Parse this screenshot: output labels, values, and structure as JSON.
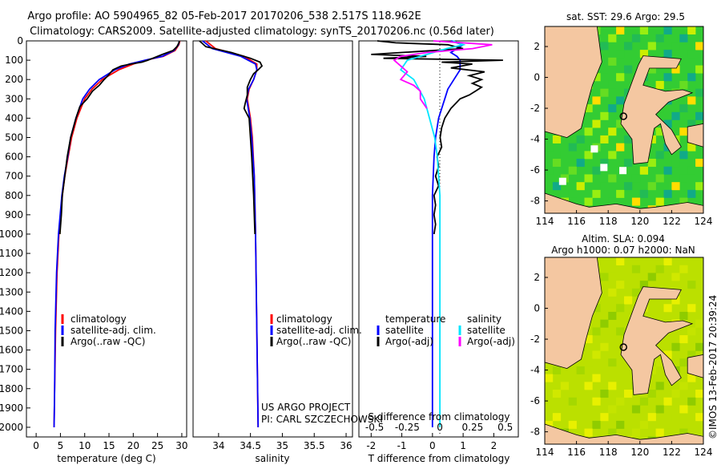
{
  "header": {
    "title_line1": "Argo profile: AO 5904965_82 05-Feb-2017 20170206_538 2.517S 118.962E",
    "title_line2": "Climatology: CARS2009. Satellite-adjusted climatology: synTS_20170206.nc (0.56d later)"
  },
  "colors": {
    "climatology": "#ff0000",
    "satellite": "#0000ff",
    "argo": "#000000",
    "sal_satellite": "#00e5ff",
    "sal_argo": "#ff00ff",
    "land": "#f4c7a1",
    "sst_mid": "#33cc33",
    "sla_mid": "#bbe000"
  },
  "chart_data": [
    {
      "type": "line",
      "name": "temperature-profile",
      "xlabel": "temperature (deg C)",
      "ylabel": "depth",
      "xlim": [
        -2,
        31
      ],
      "ylim": [
        2050,
        0
      ],
      "xticks": [
        0,
        5,
        10,
        15,
        20,
        25,
        30
      ],
      "yticks": [
        0,
        100,
        200,
        300,
        400,
        500,
        600,
        700,
        800,
        900,
        1000,
        1100,
        1200,
        1300,
        1400,
        1500,
        1600,
        1700,
        1800,
        1900,
        2000
      ],
      "legend": [
        "climatology",
        "satellite-adj. clim.",
        "Argo(..raw -QC)"
      ],
      "series": [
        {
          "name": "climatology",
          "depth": [
            0,
            20,
            50,
            80,
            100,
            120,
            150,
            200,
            250,
            300,
            400,
            500,
            600,
            700,
            800,
            1000,
            1200,
            1500,
            1800,
            2000
          ],
          "values": [
            29.6,
            29.4,
            28.6,
            26.2,
            22.5,
            20,
            17,
            13.6,
            11.5,
            10,
            8.4,
            7.3,
            6.6,
            5.9,
            5.4,
            4.7,
            4.3,
            4,
            3.8,
            3.7
          ]
        },
        {
          "name": "satellite-adj. clim.",
          "depth": [
            0,
            20,
            50,
            80,
            100,
            120,
            150,
            200,
            250,
            300,
            400,
            500,
            600,
            700,
            800,
            1000,
            1200,
            1500,
            1800,
            2000
          ],
          "values": [
            29.5,
            29.3,
            28.4,
            26,
            22.4,
            19.2,
            16.2,
            13,
            11,
            9.6,
            8.2,
            7.1,
            6.5,
            5.8,
            5.3,
            4.6,
            4.2,
            3.9,
            3.8,
            3.7
          ]
        },
        {
          "name": "Argo(..raw -QC)",
          "depth": [
            0,
            10,
            30,
            50,
            70,
            90,
            100,
            110,
            120,
            130,
            150,
            180,
            200,
            230,
            260,
            300,
            340,
            400,
            500,
            600,
            700,
            800,
            900,
            1000
          ],
          "values": [
            29.5,
            29.4,
            29,
            28.2,
            26,
            24,
            23,
            21.8,
            19.5,
            17.5,
            15.8,
            14.8,
            14,
            13,
            11.6,
            10.5,
            9,
            8.2,
            7.1,
            6.4,
            5.9,
            5.4,
            5.2,
            4.9
          ]
        }
      ]
    },
    {
      "type": "line",
      "name": "salinity-profile",
      "xlabel": "salinity",
      "xlim": [
        33.6,
        36.1
      ],
      "ylim": [
        2050,
        0
      ],
      "xticks": [
        34,
        34.5,
        35,
        35.5,
        36
      ],
      "legend": [
        "climatology",
        "satellite-adj. clim.",
        "Argo(..raw -QC)"
      ],
      "series": [
        {
          "name": "climatology",
          "depth": [
            0,
            40,
            80,
            120,
            150,
            200,
            250,
            300,
            400,
            500,
            700,
            1000,
            1500,
            2000
          ],
          "values": [
            33.8,
            33.95,
            34.4,
            34.6,
            34.6,
            34.55,
            34.48,
            34.45,
            34.5,
            34.53,
            34.56,
            34.58,
            34.6,
            34.62
          ]
        },
        {
          "name": "satellite-adj. clim.",
          "depth": [
            0,
            40,
            80,
            120,
            150,
            200,
            250,
            300,
            400,
            500,
            700,
            1000,
            1500,
            2000
          ],
          "values": [
            33.75,
            33.9,
            34.35,
            34.58,
            34.6,
            34.55,
            34.47,
            34.44,
            34.49,
            34.52,
            34.56,
            34.58,
            34.6,
            34.62
          ]
        },
        {
          "name": "Argo(..raw -QC)",
          "depth": [
            0,
            30,
            60,
            90,
            110,
            130,
            150,
            170,
            200,
            240,
            280,
            320,
            350,
            400,
            500,
            600,
            800,
            1000
          ],
          "values": [
            33.7,
            33.8,
            34.2,
            34.5,
            34.65,
            34.68,
            34.62,
            34.55,
            34.5,
            34.45,
            34.45,
            34.42,
            34.4,
            34.48,
            34.5,
            34.52,
            34.55,
            34.57
          ]
        }
      ],
      "annotations": [
        "US ARGO PROJECT",
        "PI: CARL SZCZECHOWSKI"
      ]
    },
    {
      "type": "line",
      "name": "difference-profile",
      "xlabel": "T difference from climatology",
      "xlabel_top": "S difference from climatology",
      "xlim": [
        -2.4,
        2.8
      ],
      "ylim": [
        2050,
        0
      ],
      "xticks": [
        -2,
        -1,
        0,
        1,
        2
      ],
      "xtick_labels": [
        "-2",
        "-1",
        "0",
        "1",
        "2"
      ],
      "sticks": [
        -0.5,
        -0.25,
        0,
        0.25,
        0.5
      ],
      "stick_labels": [
        "-0.5",
        "-0.25",
        "0",
        "0.25",
        "0.5"
      ],
      "legend_temperature": [
        "temperature",
        "satellite",
        "Argo(-adj)"
      ],
      "legend_salinity": [
        "salinity",
        "satellite",
        "Argo(-adj)"
      ],
      "series": [
        {
          "name": "T satellite",
          "depth": [
            0,
            20,
            40,
            60,
            80,
            100,
            150,
            200,
            250,
            300,
            400,
            500,
            600,
            800,
            1000,
            1500,
            2000
          ],
          "values": [
            0.6,
            1.0,
            0.8,
            0.6,
            0.8,
            0.9,
            0.9,
            0.7,
            0.5,
            0.4,
            0.2,
            0.1,
            0.05,
            0,
            0,
            0,
            0
          ]
        },
        {
          "name": "T Argo(-adj)",
          "depth": [
            0,
            10,
            20,
            40,
            55,
            70,
            80,
            90,
            100,
            110,
            120,
            140,
            160,
            180,
            200,
            220,
            240,
            260,
            280,
            300,
            350,
            400,
            450,
            500,
            550,
            600,
            650,
            700,
            750,
            800,
            850,
            900,
            950,
            1000
          ],
          "values": [
            -1.8,
            -1.2,
            0.5,
            1,
            -0.5,
            -2,
            -0.2,
            -1.6,
            2.3,
            0.3,
            1.3,
            0.6,
            1.7,
            1.2,
            1.6,
            1.3,
            1.6,
            1.4,
            1.2,
            0.9,
            0.6,
            0.4,
            0.3,
            0.25,
            0.3,
            0.15,
            0.2,
            0.1,
            0.2,
            0.05,
            0.1,
            0.05,
            0.1,
            0.05
          ]
        },
        {
          "name": "S satellite",
          "depth": [
            0,
            20,
            40,
            60,
            80,
            100,
            150,
            200,
            300,
            400,
            500,
            600,
            800,
            1000,
            1500,
            2000
          ],
          "values": [
            0.1,
            0.18,
            0.05,
            -0.05,
            -0.15,
            -0.25,
            -0.3,
            -0.2,
            -0.12,
            -0.08,
            -0.04,
            -0.02,
            0,
            0,
            0,
            0
          ]
        },
        {
          "name": "S Argo(-adj)",
          "depth": [
            0,
            20,
            40,
            60,
            80,
            100,
            130,
            160,
            200,
            230,
            260,
            300,
            350
          ],
          "values": [
            -0.05,
            0.4,
            0.25,
            -0.1,
            -0.3,
            -0.35,
            -0.3,
            -0.25,
            -0.3,
            -0.2,
            -0.15,
            -0.15,
            -0.1
          ]
        }
      ]
    },
    {
      "type": "heatmap",
      "name": "sst-map",
      "title": "sat. SST: 29.6 Argo: 29.5",
      "xlim": [
        114,
        124
      ],
      "ylim": [
        -8.8,
        3.3
      ],
      "xticks": [
        114,
        116,
        118,
        120,
        122,
        124
      ],
      "yticks": [
        2,
        0,
        -2,
        -4,
        -6,
        -8
      ],
      "argo_position": [
        118.962,
        -2.517
      ]
    },
    {
      "type": "heatmap",
      "name": "sla-map",
      "title_line1": "Altim. SLA: 0.094",
      "title_line2": "Argo h1000: 0.07 h2000: NaN",
      "xlim": [
        114,
        124
      ],
      "ylim": [
        -8.8,
        3.3
      ],
      "xticks": [
        114,
        116,
        118,
        120,
        122,
        124
      ],
      "yticks": [
        2,
        0,
        -2,
        -4,
        -6,
        -8
      ],
      "argo_position": [
        118.962,
        -2.517
      ]
    }
  ],
  "watermark": "©IMOS 13-Feb-2017 20:39:24"
}
